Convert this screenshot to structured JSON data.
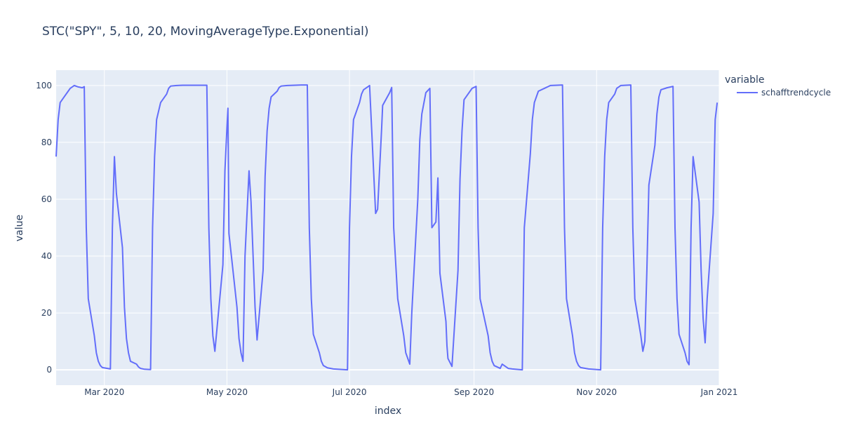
{
  "chart_data": {
    "type": "line",
    "title": "STC(\"SPY\", 5, 10, 20, MovingAverageType.Exponential)",
    "x_label": "index",
    "y_label": "value",
    "legend_title": "variable",
    "legend_position": "right",
    "grid": true,
    "xlim": [
      36,
      366
    ],
    "ylim": [
      -5.4,
      105.4
    ],
    "xticks": [
      {
        "value": 60,
        "label": "Mar 2020"
      },
      {
        "value": 121,
        "label": "May 2020"
      },
      {
        "value": 182,
        "label": "Jul 2020"
      },
      {
        "value": 244,
        "label": "Sep 2020"
      },
      {
        "value": 305,
        "label": "Nov 2020"
      },
      {
        "value": 366,
        "label": "Jan 2021"
      }
    ],
    "yticks": [
      0,
      20,
      40,
      60,
      80,
      100
    ],
    "x": [
      36,
      37,
      38,
      40,
      42,
      43,
      45,
      47,
      49,
      50,
      51,
      52,
      55,
      56,
      57,
      58,
      59,
      63,
      64,
      65,
      66,
      69,
      70,
      71,
      72,
      73,
      76,
      77,
      78,
      80,
      83,
      84,
      85,
      86,
      88,
      91,
      92,
      93,
      96,
      99,
      111,
      112,
      113,
      114,
      115,
      119,
      120,
      121,
      121.5,
      122,
      126,
      127,
      128,
      129,
      130,
      132,
      133,
      135,
      136,
      139,
      140,
      141,
      142,
      143,
      146,
      147,
      148,
      151,
      158,
      161,
      162,
      163,
      164,
      167,
      168,
      169,
      171,
      174,
      181,
      182,
      183,
      184,
      187,
      188,
      189,
      192,
      195,
      196,
      198,
      198.5,
      202,
      203,
      204,
      206,
      209,
      210,
      212,
      213,
      216,
      217,
      218,
      220,
      222,
      223,
      225,
      226,
      227,
      230,
      230.5,
      231,
      233,
      236,
      237,
      238,
      239,
      243,
      245,
      246,
      247,
      251,
      252,
      253,
      254,
      257,
      258,
      261,
      263,
      268,
      269,
      272,
      273,
      274,
      276,
      279,
      282,
      288,
      289,
      290,
      293,
      294,
      295,
      296,
      297,
      301,
      307,
      308,
      309,
      310,
      311,
      314,
      315,
      317,
      322,
      323,
      324,
      327,
      328,
      329,
      330,
      331,
      334,
      335,
      336,
      337,
      340,
      343,
      344,
      345,
      346,
      349,
      350,
      351,
      352,
      353,
      356,
      357,
      358,
      359,
      360,
      363,
      364,
      365
    ],
    "series": [
      {
        "name": "schafftrendcycle",
        "color": "#636efa",
        "values": [
          75,
          88,
          94,
          96,
          98,
          99,
          100,
          99.5,
          99.2,
          99.6,
          50,
          25,
          12,
          6,
          3,
          1.5,
          0.8,
          0.3,
          50,
          75,
          62,
          43,
          22,
          11,
          6,
          3,
          2,
          1,
          0.5,
          0.2,
          0.1,
          50,
          75,
          88,
          94,
          97,
          99,
          99.8,
          100,
          100.1,
          100.1,
          50,
          25,
          12,
          6.5,
          37,
          70,
          85,
          92,
          48,
          22,
          11,
          6,
          3,
          40,
          70,
          59,
          22,
          10.5,
          35,
          68,
          84,
          92,
          96,
          98,
          99.3,
          99.8,
          100,
          100.2,
          100.2,
          50,
          25,
          12.5,
          6,
          3,
          1.5,
          0.7,
          0.3,
          0,
          50,
          75,
          88,
          94,
          97,
          98.5,
          100,
          55,
          56.5,
          85,
          93,
          97.5,
          99.3,
          50,
          25,
          12,
          6,
          2,
          20,
          60,
          81,
          90,
          97.5,
          99,
          50,
          52,
          67.5,
          34,
          17,
          8.5,
          4,
          1.2,
          35,
          67,
          84,
          95,
          99,
          99.7,
          50,
          25,
          12,
          6,
          3,
          1.5,
          0.5,
          2,
          0.5,
          0.3,
          0,
          50,
          76,
          88,
          94,
          98,
          99,
          100,
          100.2,
          50,
          25,
          12,
          6,
          3,
          1.5,
          0.8,
          0.3,
          0,
          50,
          75,
          88,
          94,
          97,
          99,
          100,
          100.2,
          50,
          25,
          12,
          6.5,
          10,
          35,
          65,
          79,
          90,
          96,
          98.5,
          99.2,
          99.7,
          50,
          25,
          12.5,
          6,
          3,
          1.8,
          50,
          75,
          59,
          35,
          18,
          9.5,
          25,
          55,
          88,
          94
        ]
      }
    ]
  }
}
